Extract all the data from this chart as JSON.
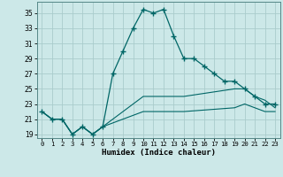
{
  "title": "",
  "xlabel": "Humidex (Indice chaleur)",
  "background_color": "#cce8e8",
  "grid_color": "#aacccc",
  "line_color": "#006666",
  "xlim": [
    -0.5,
    23.5
  ],
  "ylim": [
    18.5,
    36.5
  ],
  "xticks": [
    0,
    1,
    2,
    3,
    4,
    5,
    6,
    7,
    8,
    9,
    10,
    11,
    12,
    13,
    14,
    15,
    16,
    17,
    18,
    19,
    20,
    21,
    22,
    23
  ],
  "yticks": [
    19,
    21,
    23,
    25,
    27,
    29,
    31,
    33,
    35
  ],
  "series1_x": [
    0,
    1,
    2,
    3,
    4,
    5,
    6,
    7,
    8,
    9,
    10,
    11,
    12,
    13,
    14,
    15,
    16,
    17,
    18,
    19,
    20,
    21,
    22,
    23
  ],
  "series1_y": [
    22,
    21,
    21,
    19,
    20,
    19,
    20,
    27,
    30,
    33,
    35.5,
    35,
    35.5,
    32,
    29,
    29,
    28,
    27,
    26,
    26,
    25,
    24,
    23,
    23
  ],
  "series2_x": [
    0,
    1,
    2,
    3,
    4,
    5,
    6,
    10,
    14,
    19,
    20,
    21,
    22,
    23
  ],
  "series2_y": [
    22,
    21,
    21,
    19,
    20,
    19,
    20,
    24,
    24,
    25,
    25,
    24,
    23.5,
    22.5
  ],
  "series3_x": [
    0,
    1,
    2,
    3,
    4,
    5,
    6,
    10,
    14,
    19,
    20,
    21,
    22,
    23
  ],
  "series3_y": [
    22,
    21,
    21,
    19,
    20,
    19,
    20,
    22,
    22,
    22.5,
    23,
    22.5,
    22,
    22
  ]
}
